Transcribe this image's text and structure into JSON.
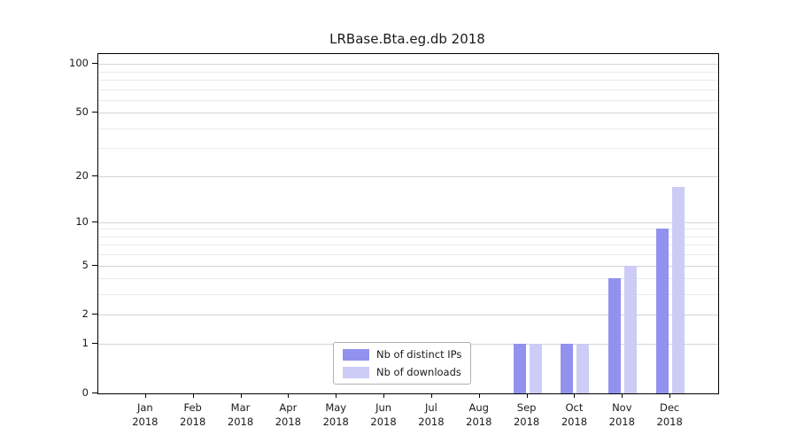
{
  "chart_data": {
    "type": "bar",
    "title": "LRBase.Bta.eg.db 2018",
    "categories": [
      "Jan",
      "Feb",
      "Mar",
      "Apr",
      "May",
      "Jun",
      "Jul",
      "Aug",
      "Sep",
      "Oct",
      "Nov",
      "Dec"
    ],
    "year_label": "2018",
    "series": [
      {
        "name": "Nb of distinct IPs",
        "color": "#9292ee",
        "values": [
          0,
          0,
          0,
          0,
          0,
          0,
          0,
          0,
          1,
          1,
          4,
          9
        ]
      },
      {
        "name": "Nb of downloads",
        "color": "#ccccf6",
        "values": [
          0,
          0,
          0,
          0,
          0,
          0,
          0,
          0,
          1,
          1,
          5,
          17
        ]
      }
    ],
    "yscale": "log1p",
    "ylim": [
      0,
      115
    ],
    "yticks": [
      0,
      1,
      2,
      5,
      10,
      20,
      50,
      100
    ],
    "yticks_minor": [
      3,
      4,
      6,
      7,
      8,
      9,
      30,
      40,
      60,
      70,
      80,
      90
    ],
    "grid": "horizontal",
    "legend_position": "inside-bottom-center"
  }
}
